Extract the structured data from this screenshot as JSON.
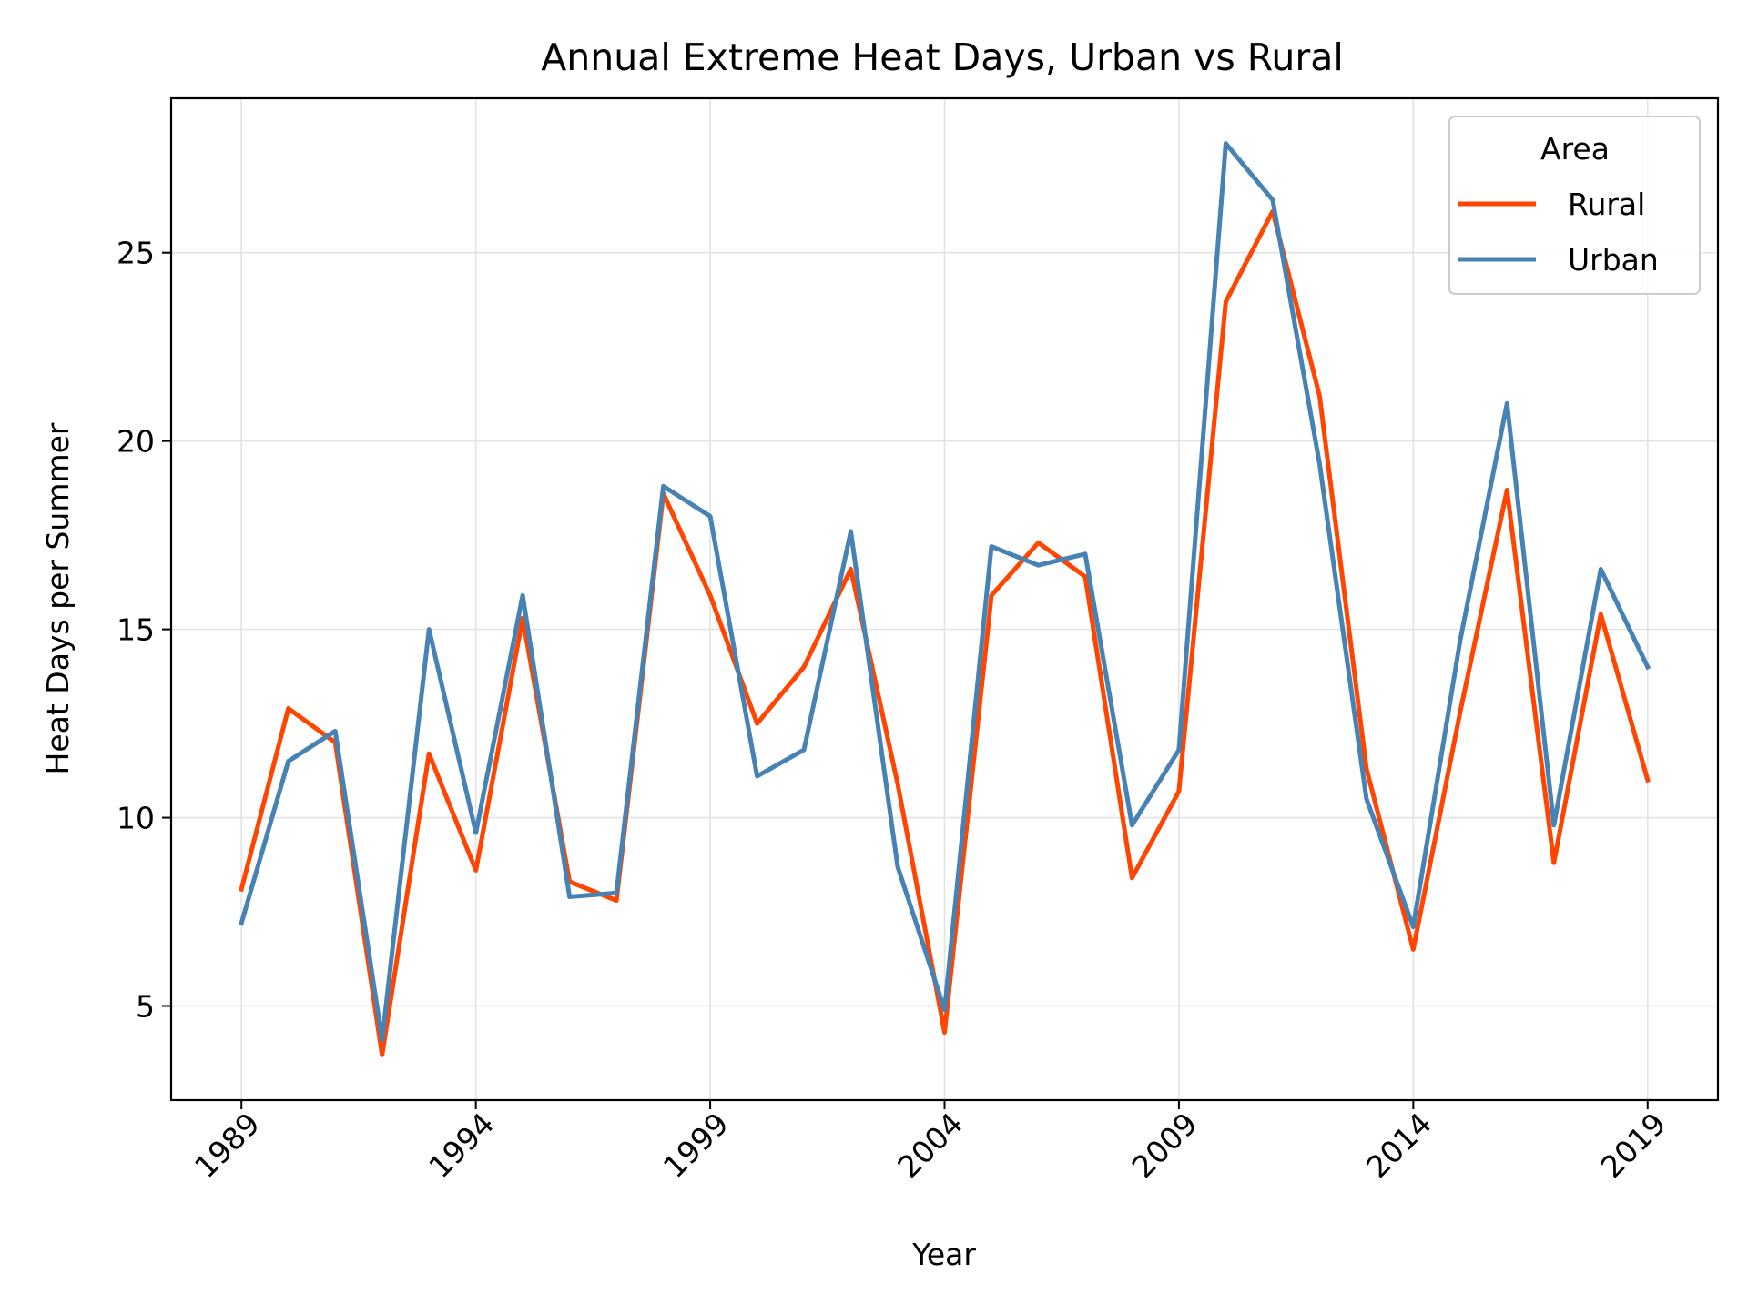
{
  "chart_data": {
    "type": "line",
    "title": "Annual Extreme Heat Days, Urban vs Rural",
    "xlabel": "Year",
    "ylabel": "Heat Days per Summer",
    "x": [
      1989,
      1990,
      1991,
      1992,
      1993,
      1994,
      1995,
      1996,
      1997,
      1998,
      1999,
      2000,
      2001,
      2002,
      2003,
      2004,
      2005,
      2006,
      2007,
      2008,
      2009,
      2010,
      2011,
      2012,
      2013,
      2014,
      2015,
      2016,
      2017,
      2018,
      2019
    ],
    "xlim": [
      1987.5,
      2020.5
    ],
    "ylim": [
      2.5,
      29.1
    ],
    "xticks": [
      1989,
      1994,
      1999,
      2004,
      2009,
      2014,
      2019
    ],
    "yticks": [
      5,
      10,
      15,
      20,
      25
    ],
    "grid": true,
    "legend": {
      "title": "Area",
      "placement": "top-right"
    },
    "series": [
      {
        "name": "Rural",
        "color": "#FF4500",
        "values": [
          8.1,
          12.9,
          12.0,
          3.7,
          11.7,
          8.6,
          15.3,
          8.3,
          7.8,
          18.6,
          15.9,
          12.5,
          14.0,
          16.6,
          10.9,
          4.3,
          15.9,
          17.3,
          16.4,
          8.4,
          10.7,
          23.7,
          26.1,
          21.2,
          11.3,
          6.5,
          12.8,
          18.7,
          8.8,
          15.4,
          11.0
        ]
      },
      {
        "name": "Urban",
        "color": "#4682B4",
        "values": [
          7.2,
          11.5,
          12.3,
          4.1,
          15.0,
          9.6,
          15.9,
          7.9,
          8.0,
          18.8,
          18.0,
          11.1,
          11.8,
          17.6,
          8.7,
          4.9,
          17.2,
          16.7,
          17.0,
          9.8,
          11.8,
          27.9,
          26.4,
          19.4,
          10.5,
          7.1,
          14.7,
          21.0,
          9.8,
          16.6,
          14.0
        ]
      }
    ]
  }
}
